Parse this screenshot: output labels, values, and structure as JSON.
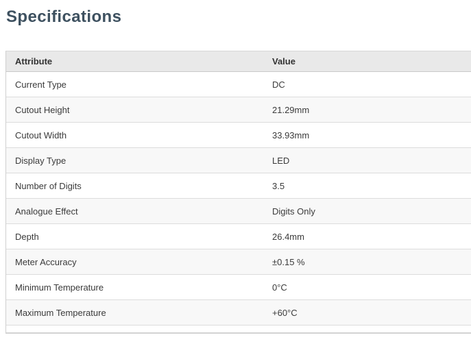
{
  "page": {
    "title": "Specifications"
  },
  "colors": {
    "heading_text": "#3e5160",
    "header_row_bg": "#e9e9e9",
    "alt_row_bg": "#f8f8f8",
    "border": "#d6d6d6",
    "body_text": "#3a3a3a"
  },
  "table": {
    "headers": [
      "Attribute",
      "Value"
    ],
    "rows": [
      {
        "attribute": "Current Type",
        "value": "DC"
      },
      {
        "attribute": "Cutout Height",
        "value": "21.29mm"
      },
      {
        "attribute": "Cutout Width",
        "value": "33.93mm"
      },
      {
        "attribute": "Display Type",
        "value": "LED"
      },
      {
        "attribute": "Number of Digits",
        "value": "3.5"
      },
      {
        "attribute": "Analogue Effect",
        "value": "Digits Only"
      },
      {
        "attribute": "Depth",
        "value": "26.4mm"
      },
      {
        "attribute": "Meter Accuracy",
        "value": "±0.15 %"
      },
      {
        "attribute": "Minimum Temperature",
        "value": "0°C"
      },
      {
        "attribute": "Maximum Temperature",
        "value": "+60°C"
      }
    ]
  }
}
